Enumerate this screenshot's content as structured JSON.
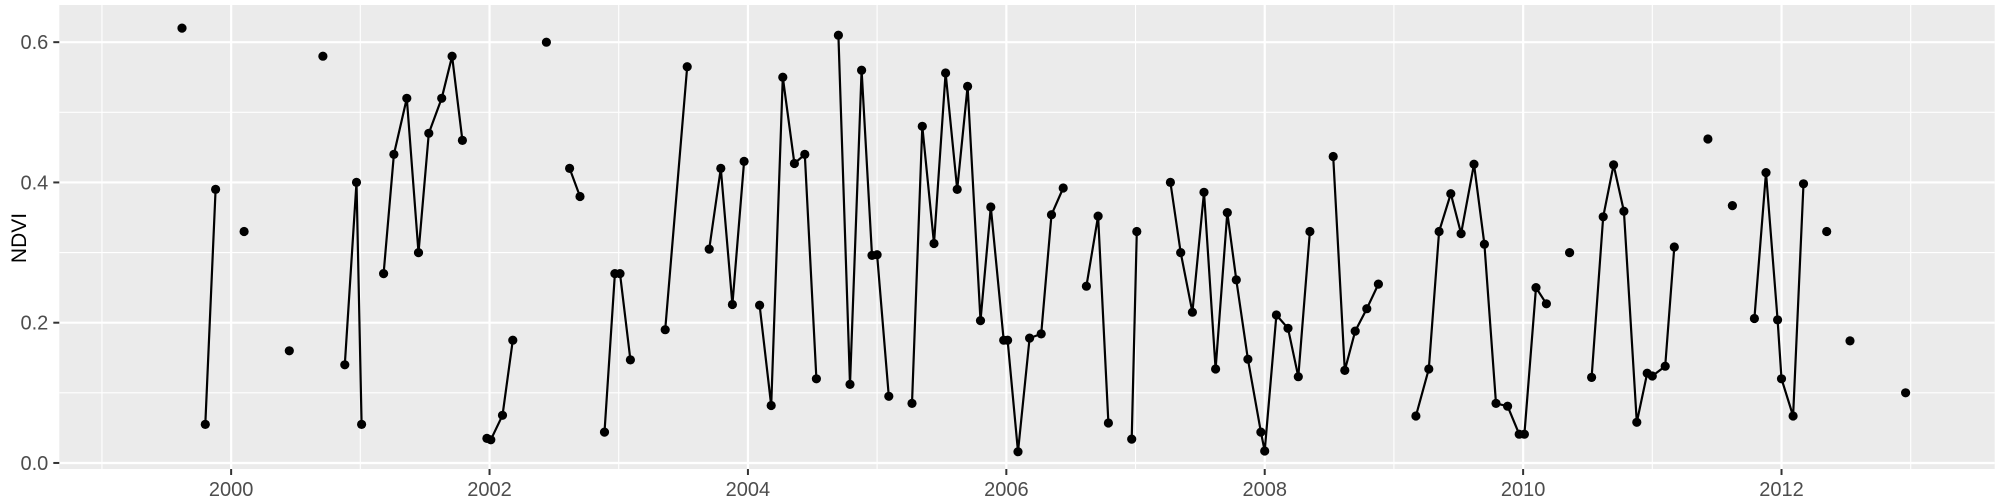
{
  "chart_data": {
    "type": "line",
    "title": "",
    "xlabel": "",
    "ylabel": "NDVI",
    "legend_position": "none",
    "grid": true,
    "x_range": [
      1998.67,
      2013.65
    ],
    "y_range": [
      -0.0086,
      0.653
    ],
    "x_ticks": [
      2000,
      2002,
      2004,
      2006,
      2008,
      2010,
      2012
    ],
    "x_tick_labels": [
      "2000",
      "2002",
      "2004",
      "2006",
      "2008",
      "2010",
      "2012"
    ],
    "x_minor_ticks": [
      1999,
      2001,
      2003,
      2005,
      2007,
      2009,
      2011,
      2013
    ],
    "y_ticks": [
      0.0,
      0.2,
      0.4,
      0.6
    ],
    "y_tick_labels": [
      "0.0",
      "0.2",
      "0.4",
      "0.6"
    ],
    "y_minor_ticks": [
      0.1,
      0.3,
      0.5
    ],
    "colors": {
      "panel_background": "#EBEBEB",
      "grid_major": "#FFFFFF",
      "grid_minor": "#FFFFFF",
      "series": "#000000",
      "tick_label": "#4D4D4D",
      "axis_title": "#000000",
      "tick_mark": "#333333"
    },
    "series": [
      {
        "name": "NDVI",
        "color": "#000000",
        "segments": [
          [
            [
              1999.62,
              0.62
            ]
          ],
          [
            [
              1999.8,
              0.055
            ],
            [
              1999.88,
              0.39
            ]
          ],
          [
            [
              2000.1,
              0.33
            ]
          ],
          [
            [
              2000.45,
              0.16
            ]
          ],
          [
            [
              2000.71,
              0.58
            ]
          ],
          [
            [
              2000.88,
              0.14
            ],
            [
              2000.97,
              0.4
            ],
            [
              2001.01,
              0.055
            ]
          ],
          [
            [
              2001.18,
              0.27
            ],
            [
              2001.26,
              0.44
            ],
            [
              2001.36,
              0.52
            ],
            [
              2001.45,
              0.3
            ],
            [
              2001.53,
              0.47
            ],
            [
              2001.63,
              0.52
            ],
            [
              2001.71,
              0.58
            ],
            [
              2001.79,
              0.46
            ]
          ],
          [
            [
              2001.98,
              0.035
            ],
            [
              2002.01,
              0.033
            ],
            [
              2002.1,
              0.068
            ],
            [
              2002.18,
              0.175
            ]
          ],
          [
            [
              2002.44,
              0.6
            ]
          ],
          [
            [
              2002.62,
              0.42
            ],
            [
              2002.7,
              0.38
            ]
          ],
          [
            [
              2002.89,
              0.044
            ],
            [
              2002.97,
              0.27
            ],
            [
              2003.01,
              0.27
            ],
            [
              2003.09,
              0.147
            ]
          ],
          [
            [
              2003.36,
              0.19
            ],
            [
              2003.53,
              0.565
            ]
          ],
          [
            [
              2003.7,
              0.305
            ],
            [
              2003.79,
              0.42
            ],
            [
              2003.88,
              0.226
            ],
            [
              2003.97,
              0.43
            ]
          ],
          [
            [
              2004.09,
              0.225
            ],
            [
              2004.18,
              0.082
            ],
            [
              2004.27,
              0.55
            ],
            [
              2004.36,
              0.427
            ],
            [
              2004.44,
              0.44
            ],
            [
              2004.53,
              0.12
            ]
          ],
          [
            [
              2004.7,
              0.61
            ],
            [
              2004.79,
              0.112
            ],
            [
              2004.88,
              0.56
            ],
            [
              2004.96,
              0.296
            ],
            [
              2005.0,
              0.297
            ],
            [
              2005.09,
              0.095
            ]
          ],
          [
            [
              2005.27,
              0.085
            ],
            [
              2005.35,
              0.48
            ],
            [
              2005.44,
              0.313
            ],
            [
              2005.53,
              0.556
            ],
            [
              2005.62,
              0.39
            ],
            [
              2005.7,
              0.537
            ],
            [
              2005.8,
              0.203
            ],
            [
              2005.88,
              0.365
            ],
            [
              2005.98,
              0.175
            ],
            [
              2006.01,
              0.175
            ],
            [
              2006.09,
              0.016
            ],
            [
              2006.18,
              0.178
            ],
            [
              2006.27,
              0.184
            ],
            [
              2006.35,
              0.354
            ],
            [
              2006.44,
              0.392
            ]
          ],
          [
            [
              2006.62,
              0.252
            ],
            [
              2006.71,
              0.352
            ],
            [
              2006.79,
              0.057
            ]
          ],
          [
            [
              2006.97,
              0.034
            ],
            [
              2007.01,
              0.33
            ]
          ],
          [
            [
              2007.27,
              0.4
            ],
            [
              2007.35,
              0.3
            ],
            [
              2007.44,
              0.215
            ],
            [
              2007.53,
              0.386
            ],
            [
              2007.62,
              0.134
            ],
            [
              2007.71,
              0.357
            ],
            [
              2007.78,
              0.261
            ],
            [
              2007.87,
              0.148
            ],
            [
              2007.97,
              0.044
            ],
            [
              2008.0,
              0.017
            ],
            [
              2008.09,
              0.211
            ],
            [
              2008.18,
              0.192
            ],
            [
              2008.26,
              0.123
            ],
            [
              2008.35,
              0.33
            ]
          ],
          [
            [
              2008.53,
              0.437
            ],
            [
              2008.62,
              0.132
            ],
            [
              2008.7,
              0.188
            ],
            [
              2008.79,
              0.22
            ],
            [
              2008.88,
              0.255
            ]
          ],
          [
            [
              2009.17,
              0.067
            ],
            [
              2009.27,
              0.134
            ],
            [
              2009.35,
              0.33
            ],
            [
              2009.44,
              0.384
            ],
            [
              2009.52,
              0.327
            ],
            [
              2009.62,
              0.426
            ],
            [
              2009.7,
              0.312
            ],
            [
              2009.79,
              0.085
            ],
            [
              2009.88,
              0.081
            ],
            [
              2009.97,
              0.041
            ],
            [
              2010.01,
              0.041
            ],
            [
              2010.1,
              0.25
            ],
            [
              2010.18,
              0.227
            ]
          ],
          [
            [
              2010.36,
              0.3
            ]
          ],
          [
            [
              2010.53,
              0.122
            ],
            [
              2010.62,
              0.351
            ],
            [
              2010.7,
              0.425
            ],
            [
              2010.78,
              0.359
            ],
            [
              2010.88,
              0.058
            ],
            [
              2010.96,
              0.128
            ],
            [
              2011.0,
              0.124
            ],
            [
              2011.1,
              0.138
            ],
            [
              2011.17,
              0.308
            ]
          ],
          [
            [
              2011.43,
              0.462
            ]
          ],
          [
            [
              2011.62,
              0.367
            ]
          ],
          [
            [
              2011.79,
              0.206
            ],
            [
              2011.88,
              0.414
            ],
            [
              2011.97,
              0.204
            ],
            [
              2012.0,
              0.12
            ],
            [
              2012.09,
              0.067
            ],
            [
              2012.17,
              0.398
            ]
          ],
          [
            [
              2012.35,
              0.33
            ]
          ],
          [
            [
              2012.53,
              0.174
            ]
          ],
          [
            [
              2012.96,
              0.1
            ]
          ]
        ]
      }
    ]
  }
}
